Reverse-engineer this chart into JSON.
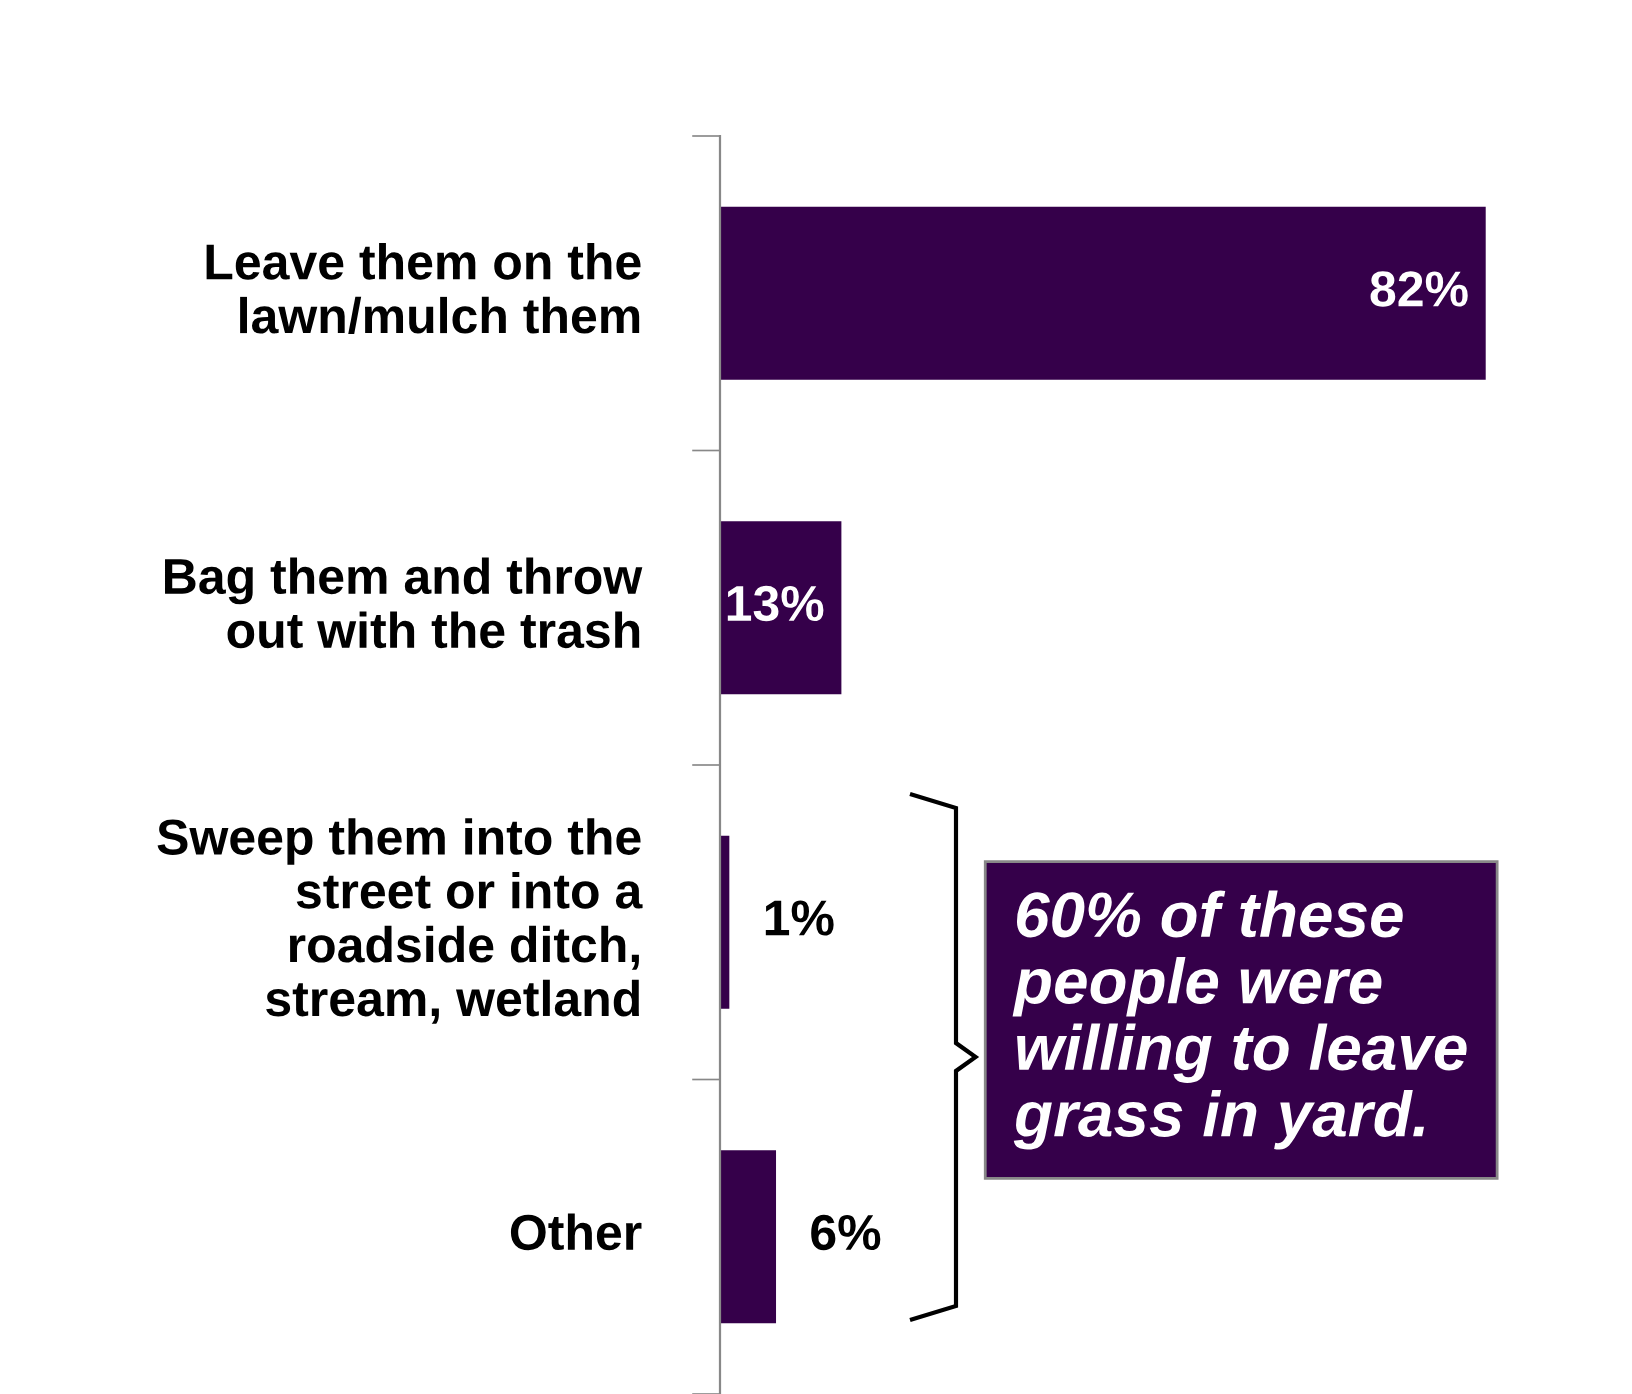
{
  "chart_data": {
    "type": "bar",
    "orientation": "horizontal",
    "categories": [
      "Leave them on the\nlawn/mulch them",
      "Bag them and throw\nout with the trash",
      "Sweep them into the\nstreet or into a\nroadside ditch,\nstream, wetland",
      "Other"
    ],
    "values": [
      82,
      13,
      1,
      6
    ],
    "value_labels": [
      "82%",
      "13%",
      "1%",
      "6%"
    ],
    "color": "#35004a",
    "grid": false,
    "annotations": [
      "60% of these\npeople were\nwilling to leave\ngrass in yard."
    ]
  }
}
